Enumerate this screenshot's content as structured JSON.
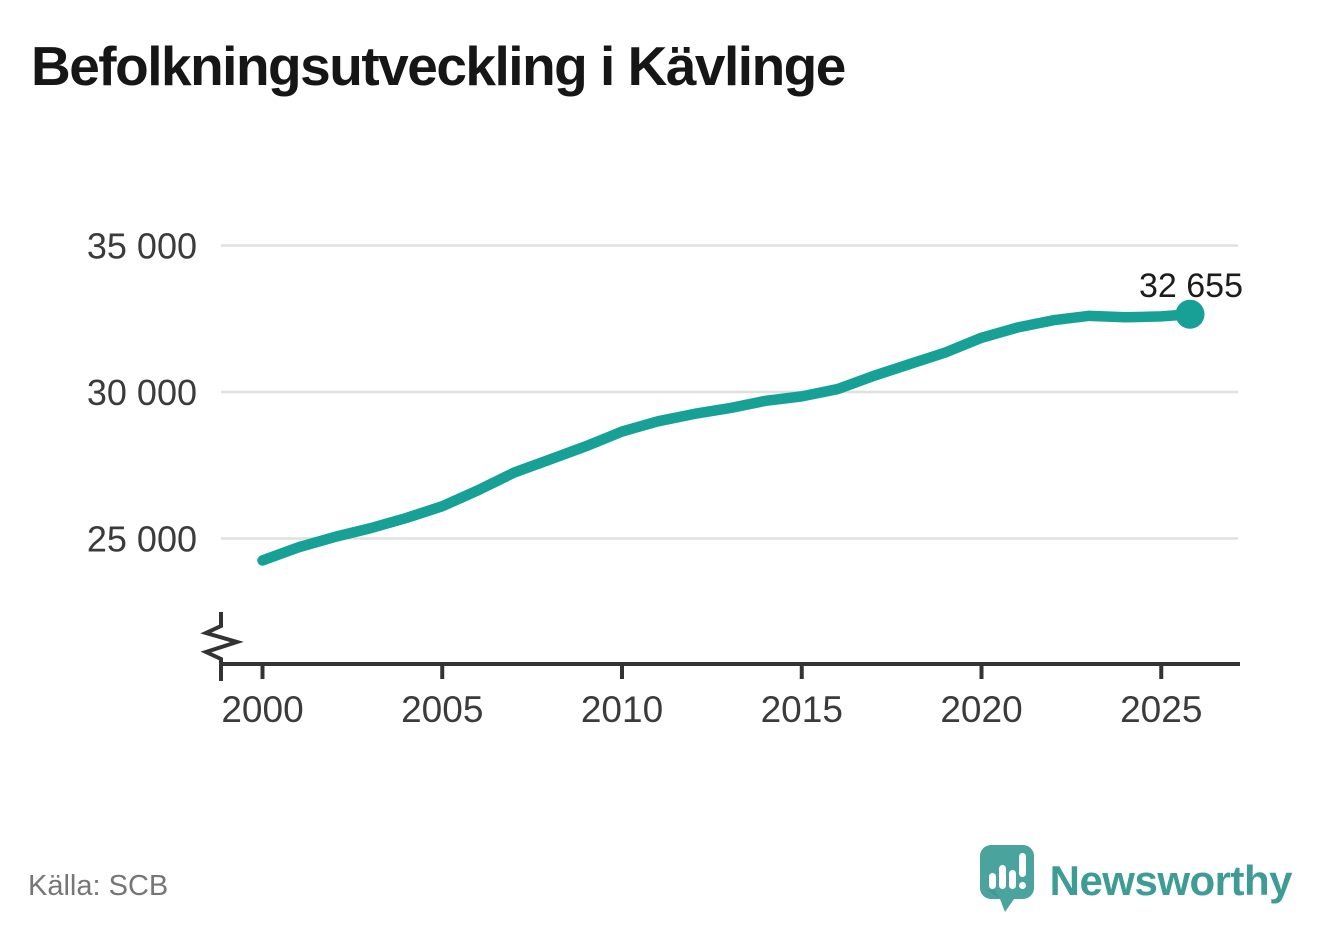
{
  "title": "Befolkningsutveckling i Kävlinge",
  "source_note": "Källa: SCB",
  "branding": {
    "name": "Newsworthy",
    "logo_icon": "newsworthy-speech-bubble-bar-chart-icon"
  },
  "colors": {
    "line": "#16a096",
    "dot": "#16a096",
    "axis": "#333333",
    "grid": "#e0e0e0",
    "tick_text": "#3b3b3b",
    "title_text": "#161616",
    "muted_text": "#767676",
    "brand_teal": "#3e9c95",
    "logo_teal": "#4aa49d",
    "logo_shadow": "#3b8f8b"
  },
  "chart_data": {
    "type": "line",
    "title": "Befolkningsutveckling i Kävlinge",
    "xlabel": "",
    "ylabel": "",
    "x": [
      2000,
      2001,
      2002,
      2003,
      2004,
      2005,
      2006,
      2007,
      2008,
      2009,
      2010,
      2011,
      2012,
      2013,
      2014,
      2015,
      2016,
      2017,
      2018,
      2019,
      2020,
      2021,
      2022,
      2023,
      2024,
      2025,
      2025.8
    ],
    "values": [
      24250,
      24700,
      25050,
      25350,
      25700,
      26100,
      26650,
      27250,
      27700,
      28150,
      28650,
      29000,
      29250,
      29450,
      29700,
      29850,
      30100,
      30550,
      30950,
      31350,
      31850,
      32200,
      32450,
      32600,
      32550,
      32580,
      32655
    ],
    "series_name": "Befolkning",
    "end_value": 32655,
    "end_label": "32 655",
    "y_ticks": [
      {
        "value": 25000,
        "label": "25 000"
      },
      {
        "value": 30000,
        "label": "30 000"
      },
      {
        "value": 35000,
        "label": "35 000"
      }
    ],
    "x_ticks": [
      {
        "value": 2000,
        "label": "2000"
      },
      {
        "value": 2005,
        "label": "2005"
      },
      {
        "value": 2010,
        "label": "2010"
      },
      {
        "value": 2015,
        "label": "2015"
      },
      {
        "value": 2020,
        "label": "2020"
      },
      {
        "value": 2025,
        "label": "2025"
      }
    ],
    "ylim": [
      24000,
      35600
    ],
    "xlim": [
      1999,
      2027
    ],
    "axis_break": true,
    "grid": "horizontal",
    "legend": "none"
  }
}
